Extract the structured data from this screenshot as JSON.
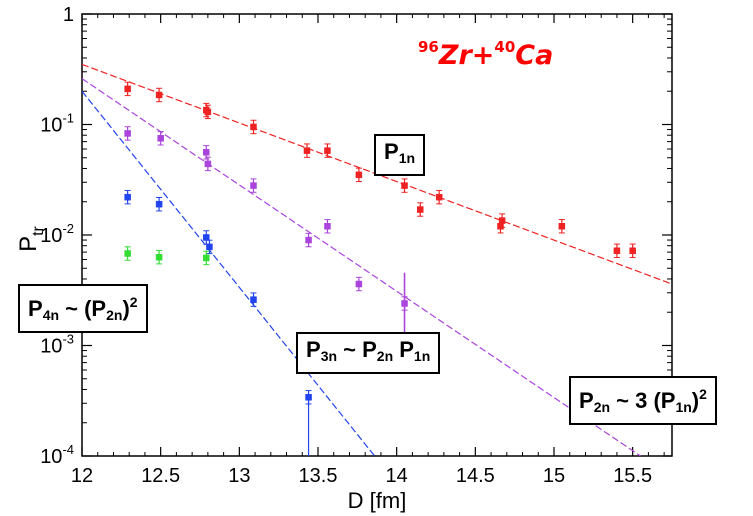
{
  "chart_data": {
    "type": "scatter",
    "yscale": "log",
    "xlabel": "D [fm]",
    "ylabel": "P",
    "ylabel_sub": "tr",
    "xlim": [
      12,
      15.75
    ],
    "ylim": [
      0.0001,
      1
    ],
    "x_ticks": [
      12,
      12.5,
      13,
      13.5,
      14,
      14.5,
      15,
      15.5
    ],
    "x_tick_labels": [
      "12",
      "12.5",
      "13",
      "13.5",
      "14",
      "14.5",
      "15",
      "15.5"
    ],
    "y_ticks": [
      0.0001,
      0.001,
      0.01,
      0.1,
      1
    ],
    "y_tick_labels": [
      {
        "base": "10",
        "exp": "-4"
      },
      {
        "base": "10",
        "exp": "-3"
      },
      {
        "base": "10",
        "exp": "-2"
      },
      {
        "base": "10",
        "exp": "-1"
      },
      {
        "base": "1",
        "exp": ""
      }
    ],
    "reaction": {
      "a1": "96",
      "e1": "Zr",
      "sep": "+",
      "a2": "40",
      "e2": "Ca"
    },
    "series": [
      {
        "name": "P1n",
        "color": "#ee2222",
        "points": [
          [
            12.29,
            0.21
          ],
          [
            12.49,
            0.185
          ],
          [
            12.79,
            0.135
          ],
          [
            12.8,
            0.13
          ],
          [
            13.09,
            0.095
          ],
          [
            13.43,
            0.058
          ],
          [
            13.56,
            0.058
          ],
          [
            13.76,
            0.035
          ],
          [
            14.05,
            0.028
          ],
          [
            14.15,
            0.017
          ],
          [
            14.27,
            0.022
          ],
          [
            14.66,
            0.012
          ],
          [
            14.67,
            0.0135
          ],
          [
            15.05,
            0.012
          ],
          [
            15.4,
            0.0072
          ],
          [
            15.5,
            0.0072
          ]
        ],
        "fit": [
          [
            12,
            0.35
          ],
          [
            15.75,
            0.0036
          ]
        ]
      },
      {
        "name": "P2n",
        "color": "#aa44dd",
        "points": [
          [
            12.29,
            0.083
          ],
          [
            12.5,
            0.075
          ],
          [
            12.79,
            0.056
          ],
          [
            12.8,
            0.044
          ],
          [
            13.09,
            0.028
          ],
          [
            13.44,
            0.009
          ],
          [
            13.56,
            0.012
          ],
          [
            13.76,
            0.0036
          ],
          [
            14.05,
            0.0024
          ]
        ],
        "fit": [
          [
            12,
            0.26
          ],
          [
            15.55,
            0.0001
          ]
        ]
      },
      {
        "name": "P3n",
        "color": "#2244ee",
        "points": [
          [
            12.29,
            0.022
          ],
          [
            12.49,
            0.019
          ],
          [
            12.79,
            0.0095
          ],
          [
            12.81,
            0.0078
          ],
          [
            13.09,
            0.0026
          ],
          [
            13.44,
            0.00034
          ]
        ],
        "fit": [
          [
            12,
            0.2
          ],
          [
            13.86,
            0.0001
          ]
        ]
      },
      {
        "name": "P4n",
        "color": "#33dd33",
        "points": [
          [
            12.29,
            0.0068
          ],
          [
            12.49,
            0.0063
          ],
          [
            12.79,
            0.0062
          ]
        ],
        "fit": null
      }
    ],
    "annotations": {
      "p1n": {
        "P": "P",
        "sub": "1n"
      },
      "p2n": {
        "P": "P",
        "sub": "2n",
        "rel": " ~ 3 (P",
        "sub2": "1n",
        "close": ")",
        "pow": "2"
      },
      "p3n": {
        "P": "P",
        "sub": "3n",
        "rel": " ~ P",
        "sub2": "2n",
        "mid": " P",
        "sub3": "1n"
      },
      "p4n": {
        "P": "P",
        "sub": "4n",
        "rel": " ~ (P",
        "sub2": "2n",
        "close": ")",
        "pow": "2"
      }
    }
  }
}
